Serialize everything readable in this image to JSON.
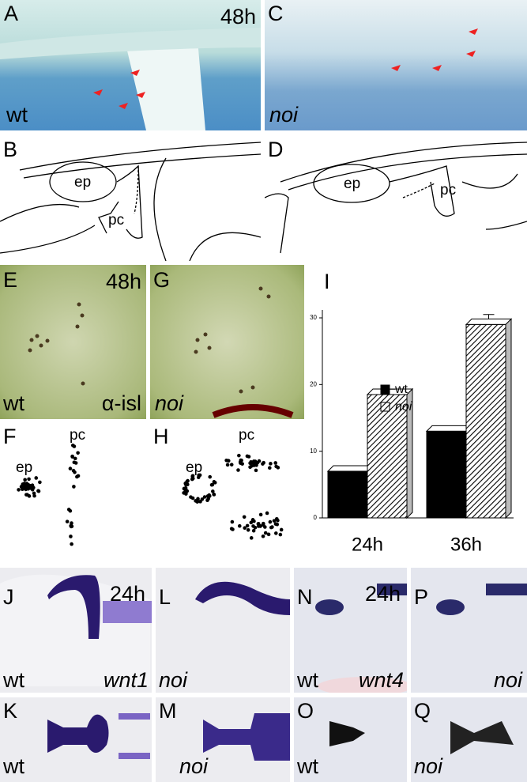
{
  "panels": {
    "A": {
      "label": "A",
      "time": "48h",
      "genotype": "wt"
    },
    "C": {
      "label": "C",
      "genotype": "noi"
    },
    "B": {
      "label": "B",
      "ep": "ep",
      "pc": "pc"
    },
    "D": {
      "label": "D",
      "ep": "ep",
      "pc": "pc"
    },
    "E": {
      "label": "E",
      "time": "48h",
      "genotype": "wt",
      "antibody": "α-isl"
    },
    "G": {
      "label": "G",
      "genotype": "noi"
    },
    "F": {
      "label": "F",
      "ep": "ep",
      "pc": "pc"
    },
    "H": {
      "label": "H",
      "ep": "ep",
      "pc": "pc"
    },
    "J": {
      "label": "J",
      "time": "24h",
      "genotype": "wt",
      "gene": "wnt1"
    },
    "L": {
      "label": "L",
      "genotype": "noi"
    },
    "N": {
      "label": "N",
      "time": "24h",
      "genotype": "wt",
      "gene": "wnt4"
    },
    "P": {
      "label": "P",
      "genotype": "noi"
    },
    "K": {
      "label": "K",
      "genotype": "wt"
    },
    "M": {
      "label": "M",
      "genotype": "noi"
    },
    "O": {
      "label": "O",
      "genotype": "wt"
    },
    "Q": {
      "label": "Q",
      "genotype": "noi"
    }
  },
  "chart_data": {
    "type": "bar",
    "panel_label": "I",
    "categories": [
      "24h",
      "36h"
    ],
    "series": [
      {
        "name": "wt",
        "color": "#000000",
        "values": [
          7,
          13
        ]
      },
      {
        "name": "noi",
        "color": "#444444",
        "pattern": "hatch",
        "values": [
          18.5,
          29
        ],
        "errors": [
          0.8,
          1.5
        ]
      }
    ],
    "ylim": [
      0,
      30
    ],
    "yticks": [
      0,
      10,
      20,
      30
    ]
  }
}
